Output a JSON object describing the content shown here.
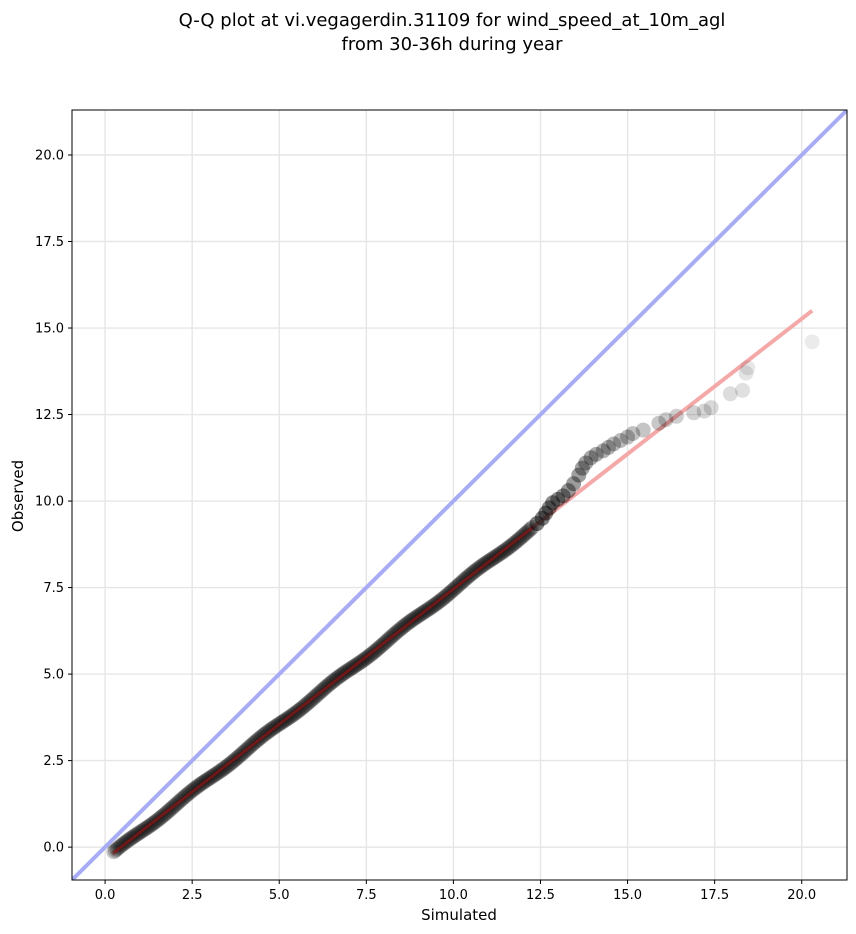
{
  "chart_data": {
    "type": "scatter",
    "title_lines": [
      "Q-Q plot at vi.vegagerdin.31109 for wind_speed_at_10m_agl",
      "from 30-36h during year"
    ],
    "xlabel": "Simulated",
    "ylabel": "Observed",
    "xlim": [
      -0.95,
      21.3
    ],
    "ylim": [
      -0.95,
      21.3
    ],
    "x_ticks": [
      0.0,
      2.5,
      5.0,
      7.5,
      10.0,
      12.5,
      15.0,
      17.5,
      20.0
    ],
    "y_ticks": [
      0.0,
      2.5,
      5.0,
      7.5,
      10.0,
      12.5,
      15.0,
      17.5,
      20.0
    ],
    "x_tick_labels": [
      "0.0",
      "2.5",
      "5.0",
      "7.5",
      "10.0",
      "12.5",
      "15.0",
      "17.5",
      "20.0"
    ],
    "y_tick_labels": [
      "0.0",
      "2.5",
      "5.0",
      "7.5",
      "10.0",
      "12.5",
      "15.0",
      "17.5",
      "20.0"
    ],
    "grid": true,
    "colors": {
      "points": "#000000",
      "identity_line": "#a8acf4",
      "fit_line": "#f4a8a8",
      "dense_fit": "#8b1a1a",
      "grid": "#e6e6e6"
    },
    "identity_line": {
      "x": [
        -0.95,
        21.3
      ],
      "y": [
        -0.95,
        21.3
      ]
    },
    "fit_line": {
      "x": [
        0.2,
        20.3
      ],
      "y": [
        -0.2,
        15.5
      ]
    },
    "tail_points": [
      [
        12.4,
        9.35
      ],
      [
        12.55,
        9.5
      ],
      [
        12.65,
        9.65
      ],
      [
        12.75,
        9.8
      ],
      [
        12.85,
        9.95
      ],
      [
        13.0,
        10.05
      ],
      [
        13.15,
        10.15
      ],
      [
        13.3,
        10.3
      ],
      [
        13.45,
        10.5
      ],
      [
        13.6,
        10.75
      ],
      [
        13.7,
        10.95
      ],
      [
        13.8,
        11.1
      ],
      [
        13.95,
        11.25
      ],
      [
        14.1,
        11.35
      ],
      [
        14.3,
        11.45
      ],
      [
        14.45,
        11.55
      ],
      [
        14.6,
        11.65
      ],
      [
        14.8,
        11.75
      ],
      [
        15.0,
        11.85
      ],
      [
        15.15,
        11.95
      ],
      [
        15.45,
        12.05
      ],
      [
        15.9,
        12.25
      ],
      [
        16.1,
        12.35
      ],
      [
        16.4,
        12.45
      ],
      [
        16.9,
        12.55
      ],
      [
        17.2,
        12.6
      ],
      [
        17.4,
        12.7
      ],
      [
        17.95,
        13.1
      ],
      [
        18.3,
        13.2
      ],
      [
        18.4,
        13.7
      ],
      [
        18.45,
        13.85
      ],
      [
        20.3,
        14.6
      ]
    ]
  }
}
